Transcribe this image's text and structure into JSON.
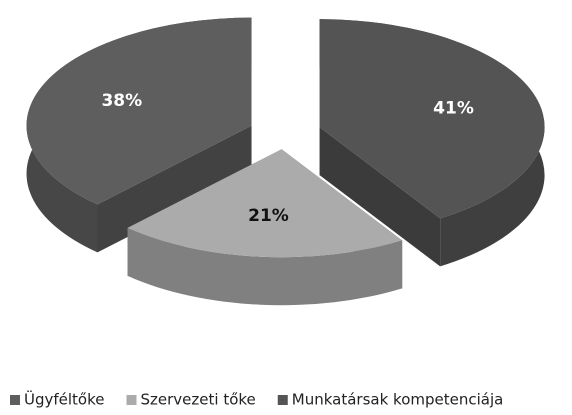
{
  "chart_data": {
    "type": "pie3d",
    "categories": [
      "Ügyféltőke",
      "Szervezeti tőke",
      "Munkatársak kompetenciája"
    ],
    "values": [
      38,
      21,
      41
    ],
    "value_labels": [
      "38%",
      "21%",
      "41%"
    ],
    "colors": [
      "#5e5e5e",
      "#ababab",
      "#545454"
    ],
    "legend": "bottom"
  }
}
